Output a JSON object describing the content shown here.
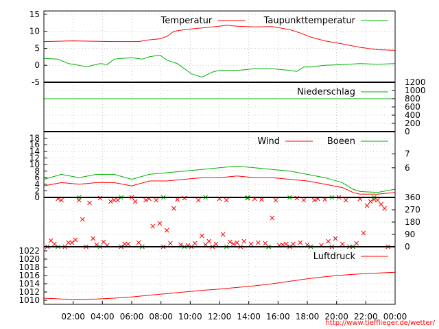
{
  "footer": {
    "url": "http://www.tiefflieger.de/wetter/"
  },
  "colors": {
    "red": "#ff0000",
    "green": "#00b000",
    "axis": "#000000",
    "grid": "#a0a0a0"
  },
  "chart_data": [
    {
      "type": "line",
      "panel": "temperature",
      "ylim": [
        -5,
        16
      ],
      "yticks": [
        "-5",
        "0",
        "5",
        "10",
        "15"
      ],
      "yticks_values": [
        -5,
        0,
        5,
        10,
        15
      ],
      "grid": true,
      "legend_position": "top-right",
      "series": [
        {
          "name": "Temperatur",
          "color": "#ff0000",
          "x": [
            0,
            0.08,
            0.2,
            0.27,
            0.3,
            0.33,
            0.35,
            0.37,
            0.4,
            0.45,
            0.5,
            0.52,
            0.55,
            0.6,
            0.65,
            0.7,
            0.73,
            0.76,
            0.8,
            0.85,
            0.9,
            0.95,
            1.0
          ],
          "values": [
            7.0,
            7.2,
            7.0,
            7.0,
            7.5,
            7.8,
            8.5,
            10.0,
            10.5,
            11.0,
            11.5,
            11.8,
            11.5,
            11.3,
            11.4,
            10.5,
            9.5,
            8.3,
            7.2,
            6.3,
            5.3,
            4.6,
            4.4
          ]
        },
        {
          "name": "Taupunkttemperatur",
          "color": "#00b000",
          "x": [
            0,
            0.04,
            0.07,
            0.1,
            0.12,
            0.16,
            0.18,
            0.2,
            0.22,
            0.25,
            0.28,
            0.3,
            0.33,
            0.35,
            0.38,
            0.4,
            0.42,
            0.45,
            0.48,
            0.5,
            0.55,
            0.6,
            0.65,
            0.7,
            0.72,
            0.74,
            0.76,
            0.8,
            0.85,
            0.9,
            0.95,
            1.0
          ],
          "values": [
            2.0,
            1.8,
            0.5,
            0.0,
            -0.5,
            0.5,
            0.2,
            1.8,
            2.0,
            2.2,
            1.8,
            2.5,
            3.0,
            1.5,
            0.5,
            -1.0,
            -2.5,
            -3.5,
            -2.0,
            -1.5,
            -1.5,
            -1.0,
            -1.0,
            -1.5,
            -1.8,
            -0.5,
            -0.5,
            0.0,
            0.2,
            0.5,
            0.3,
            0.5
          ]
        }
      ]
    },
    {
      "type": "line",
      "panel": "precipitation",
      "ylim": [
        0,
        1200
      ],
      "yticks": [
        "0",
        "200",
        "400",
        "600",
        "800",
        "1000",
        "1200"
      ],
      "yticks_values": [
        0,
        200,
        400,
        600,
        800,
        1000,
        1200
      ],
      "grid": true,
      "legend_position": "top-right",
      "series": [
        {
          "name": "Niederschlag",
          "color": "#00b000",
          "x": [
            0,
            1.0
          ],
          "values": [
            800,
            800
          ]
        }
      ]
    },
    {
      "type": "line",
      "panel": "wind",
      "ylim": [
        0,
        20
      ],
      "yticks_left": [
        "0",
        "2",
        "4",
        "6",
        "8",
        "10",
        "12",
        "14",
        "16",
        "18"
      ],
      "yticks_left_values": [
        0,
        2,
        4,
        6,
        8,
        10,
        12,
        14,
        16,
        18
      ],
      "yticks_right": [
        "6",
        "7"
      ],
      "yticks_right_values": [
        9,
        13.2
      ],
      "grid": true,
      "legend_position": "top-right",
      "series": [
        {
          "name": "Wind",
          "color": "#ff0000",
          "x": [
            0,
            0.05,
            0.1,
            0.15,
            0.2,
            0.25,
            0.3,
            0.35,
            0.4,
            0.45,
            0.5,
            0.55,
            0.6,
            0.65,
            0.7,
            0.75,
            0.8,
            0.85,
            0.88,
            0.9,
            0.95,
            1.0
          ],
          "values": [
            3.5,
            4.5,
            4.0,
            4.5,
            4.5,
            3.5,
            5.0,
            5.0,
            5.5,
            6.0,
            6.0,
            6.5,
            6.0,
            6.0,
            5.5,
            5.0,
            4.0,
            3.0,
            1.5,
            1.0,
            1.0,
            1.5
          ]
        },
        {
          "name": "Boeen",
          "color": "#00b000",
          "x": [
            0,
            0.05,
            0.1,
            0.15,
            0.2,
            0.25,
            0.3,
            0.35,
            0.4,
            0.45,
            0.5,
            0.55,
            0.6,
            0.65,
            0.7,
            0.75,
            0.8,
            0.85,
            0.88,
            0.9,
            0.95,
            1.0
          ],
          "values": [
            5.5,
            7.0,
            6.0,
            7.0,
            7.0,
            5.5,
            7.0,
            7.5,
            8.0,
            8.5,
            9.0,
            9.5,
            9.0,
            8.5,
            8.0,
            7.0,
            6.0,
            4.5,
            2.5,
            1.8,
            1.5,
            2.5
          ]
        }
      ]
    },
    {
      "type": "scatter",
      "panel": "wind-direction",
      "ylim": [
        0,
        360
      ],
      "yticks": [
        "0",
        "90",
        "180",
        "270",
        "360"
      ],
      "yticks_values": [
        0,
        90,
        180,
        270,
        360
      ],
      "grid": true,
      "series": [
        {
          "name": "",
          "color": "#ff0000",
          "x": [
            0.01,
            0.02,
            0.04,
            0.06,
            0.08,
            0.1,
            0.12,
            0.14,
            0.16,
            0.18,
            0.2,
            0.22,
            0.24,
            0.26,
            0.28,
            0.3,
            0.32,
            0.34,
            0.36,
            0.38,
            0.4,
            0.42,
            0.44,
            0.46,
            0.48,
            0.5,
            0.52,
            0.54,
            0.56,
            0.58,
            0.6,
            0.62,
            0.64,
            0.66,
            0.68,
            0.7,
            0.72,
            0.74,
            0.76,
            0.78,
            0.8,
            0.82,
            0.84,
            0.86,
            0.88,
            0.9,
            0.92,
            0.94,
            0.96,
            0.98,
            0.03,
            0.07,
            0.11,
            0.15,
            0.19,
            0.23,
            0.27,
            0.31,
            0.35,
            0.39,
            0.43,
            0.47,
            0.51,
            0.55,
            0.59,
            0.63,
            0.67,
            0.71,
            0.75,
            0.79,
            0.83,
            0.87,
            0.91,
            0.95,
            0.05,
            0.09,
            0.13,
            0.17,
            0.21,
            0.25,
            0.29,
            0.33,
            0.37,
            0.41,
            0.45,
            0.49,
            0.53,
            0.57,
            0.61,
            0.65,
            0.69,
            0.73,
            0.77,
            0.81,
            0.85,
            0.89,
            0.93,
            0.97
          ],
          "values": [
            0,
            45,
            350,
            0,
            30,
            340,
            0,
            60,
            355,
            10,
            340,
            0,
            20,
            330,
            0,
            350,
            340,
            0,
            25,
            345,
            355,
            0,
            340,
            15,
            0,
            350,
            340,
            20,
            0,
            355,
            350,
            345,
            0,
            340,
            15,
            0,
            355,
            340,
            0,
            350,
            345,
            0,
            360,
            340,
            0,
            350,
            300,
            345,
            310,
            0,
            20,
            30,
            200,
            15,
            330,
            20,
            30,
            150,
            120,
            15,
            25,
            40,
            90,
            30,
            20,
            25,
            10,
            20,
            15,
            10,
            60,
            0,
            100,
            340,
            340,
            50,
            320,
            35,
            340,
            360,
            340,
            170,
            280,
            10,
            80,
            20,
            35,
            40,
            30,
            210,
            20,
            30,
            340,
            40,
            20,
            25,
            330,
            280
          ]
        },
        {
          "name": "",
          "color": "#00b000",
          "x": [
            0.04,
            0.1,
            0.16,
            0.22,
            0.28,
            0.34,
            0.4,
            0.46,
            0.52,
            0.58,
            0.64,
            0.7,
            0.76,
            0.82,
            0.88,
            0.94
          ],
          "values": [
            0,
            360,
            0,
            360,
            0,
            360,
            0,
            360,
            0,
            360,
            0,
            360,
            0,
            360,
            0,
            360
          ]
        }
      ]
    },
    {
      "type": "line",
      "panel": "pressure",
      "ylim": [
        1009,
        1023
      ],
      "yticks": [
        "1010",
        "1012",
        "1014",
        "1016",
        "1018",
        "1020",
        "1022"
      ],
      "yticks_values": [
        1010,
        1012,
        1014,
        1016,
        1018,
        1020,
        1022
      ],
      "xticks": [
        "02:00",
        "04:00",
        "06:00",
        "08:00",
        "10:00",
        "12:00",
        "14:00",
        "16:00",
        "18:00",
        "20:00",
        "22:00",
        "00:00"
      ],
      "grid": true,
      "legend_position": "top-right",
      "series": [
        {
          "name": "Luftdruck",
          "color": "#ff0000",
          "x": [
            0,
            0.05,
            0.1,
            0.15,
            0.2,
            0.25,
            0.3,
            0.35,
            0.4,
            0.45,
            0.5,
            0.55,
            0.6,
            0.65,
            0.7,
            0.75,
            0.8,
            0.85,
            0.9,
            0.95,
            1.0
          ],
          "values": [
            1010.5,
            1010.3,
            1010.2,
            1010.3,
            1010.5,
            1010.8,
            1011.2,
            1011.6,
            1012.0,
            1012.4,
            1012.7,
            1013.1,
            1013.5,
            1014.0,
            1014.6,
            1015.2,
            1015.7,
            1016.1,
            1016.4,
            1016.6,
            1016.8
          ]
        }
      ]
    }
  ]
}
